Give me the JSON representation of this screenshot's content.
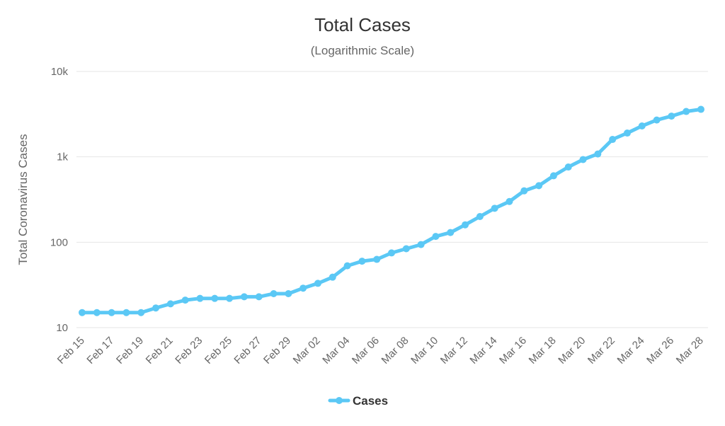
{
  "chart_data": {
    "type": "line",
    "title": "Total Cases",
    "subtitle": "(Logarithmic Scale)",
    "ylabel": "Total Coronavirus Cases",
    "xlabel": "",
    "yscale": "log",
    "ylim": [
      10,
      10000
    ],
    "yticks": [
      {
        "value": 10,
        "label": "10"
      },
      {
        "value": 100,
        "label": "100"
      },
      {
        "value": 1000,
        "label": "1k"
      },
      {
        "value": 10000,
        "label": "10k"
      }
    ],
    "xtick_labels": [
      "Feb 15",
      "Feb 17",
      "Feb 19",
      "Feb 21",
      "Feb 23",
      "Feb 25",
      "Feb 27",
      "Feb 29",
      "Mar 02",
      "Mar 04",
      "Mar 06",
      "Mar 08",
      "Mar 10",
      "Mar 12",
      "Mar 14",
      "Mar 16",
      "Mar 18",
      "Mar 20",
      "Mar 22",
      "Mar 24",
      "Mar 26",
      "Mar 28"
    ],
    "grid": true,
    "legend_position": "bottom-center",
    "color": "#5BC8F5",
    "x": [
      "Feb 15",
      "Feb 16",
      "Feb 17",
      "Feb 18",
      "Feb 19",
      "Feb 20",
      "Feb 21",
      "Feb 22",
      "Feb 23",
      "Feb 24",
      "Feb 25",
      "Feb 26",
      "Feb 27",
      "Feb 28",
      "Feb 29",
      "Mar 01",
      "Mar 02",
      "Mar 03",
      "Mar 04",
      "Mar 05",
      "Mar 06",
      "Mar 07",
      "Mar 08",
      "Mar 09",
      "Mar 10",
      "Mar 11",
      "Mar 12",
      "Mar 13",
      "Mar 14",
      "Mar 15",
      "Mar 16",
      "Mar 17",
      "Mar 18",
      "Mar 19",
      "Mar 20",
      "Mar 21",
      "Mar 22",
      "Mar 23",
      "Mar 24",
      "Mar 25",
      "Mar 26",
      "Mar 27",
      "Mar 28"
    ],
    "series": [
      {
        "name": "Cases",
        "values": [
          15,
          15,
          15,
          15,
          15,
          17,
          19,
          21,
          22,
          22,
          22,
          23,
          23,
          25,
          25,
          29,
          33,
          39,
          53,
          60,
          63,
          75,
          84,
          94,
          117,
          130,
          160,
          200,
          250,
          300,
          400,
          460,
          600,
          760,
          930,
          1080,
          1600,
          1900,
          2300,
          2700,
          3000,
          3400,
          3600
        ]
      }
    ]
  }
}
